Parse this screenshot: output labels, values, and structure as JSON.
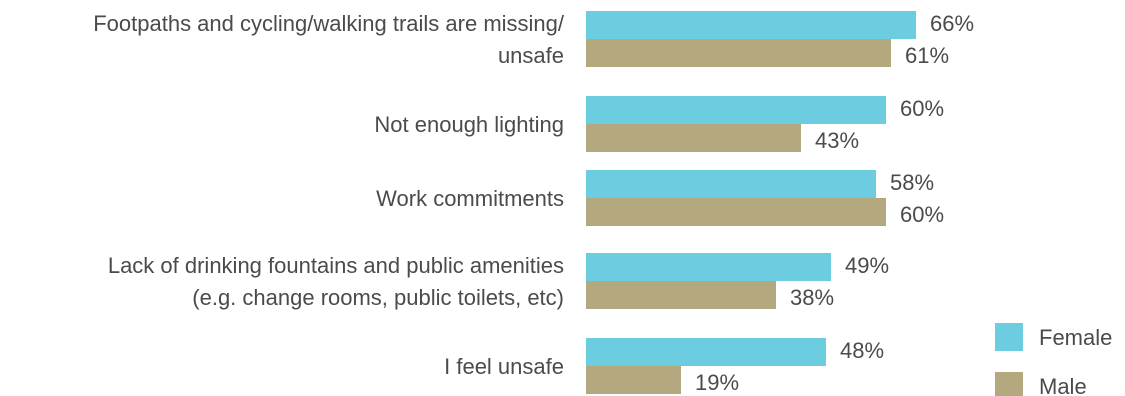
{
  "chart_data": {
    "type": "bar",
    "orientation": "horizontal",
    "title": "",
    "xlabel": "",
    "ylabel": "",
    "xlim": [
      0,
      100
    ],
    "grid": false,
    "legend": "bottom-right",
    "value_suffix": "%",
    "categories": [
      [
        "Footpaths and cycling/walking trails are missing/",
        "unsafe"
      ],
      [
        "Not enough lighting"
      ],
      [
        "Work commitments"
      ],
      [
        "Lack of drinking fountains and public amenities",
        "(e.g. change rooms, public toilets, etc)"
      ],
      [
        "I feel unsafe"
      ]
    ],
    "series": [
      {
        "name": "Female",
        "color": "#6dcde0",
        "values": [
          66,
          60,
          58,
          49,
          48
        ]
      },
      {
        "name": "Male",
        "color": "#b3a87e",
        "values": [
          61,
          43,
          60,
          38,
          19
        ]
      }
    ]
  }
}
